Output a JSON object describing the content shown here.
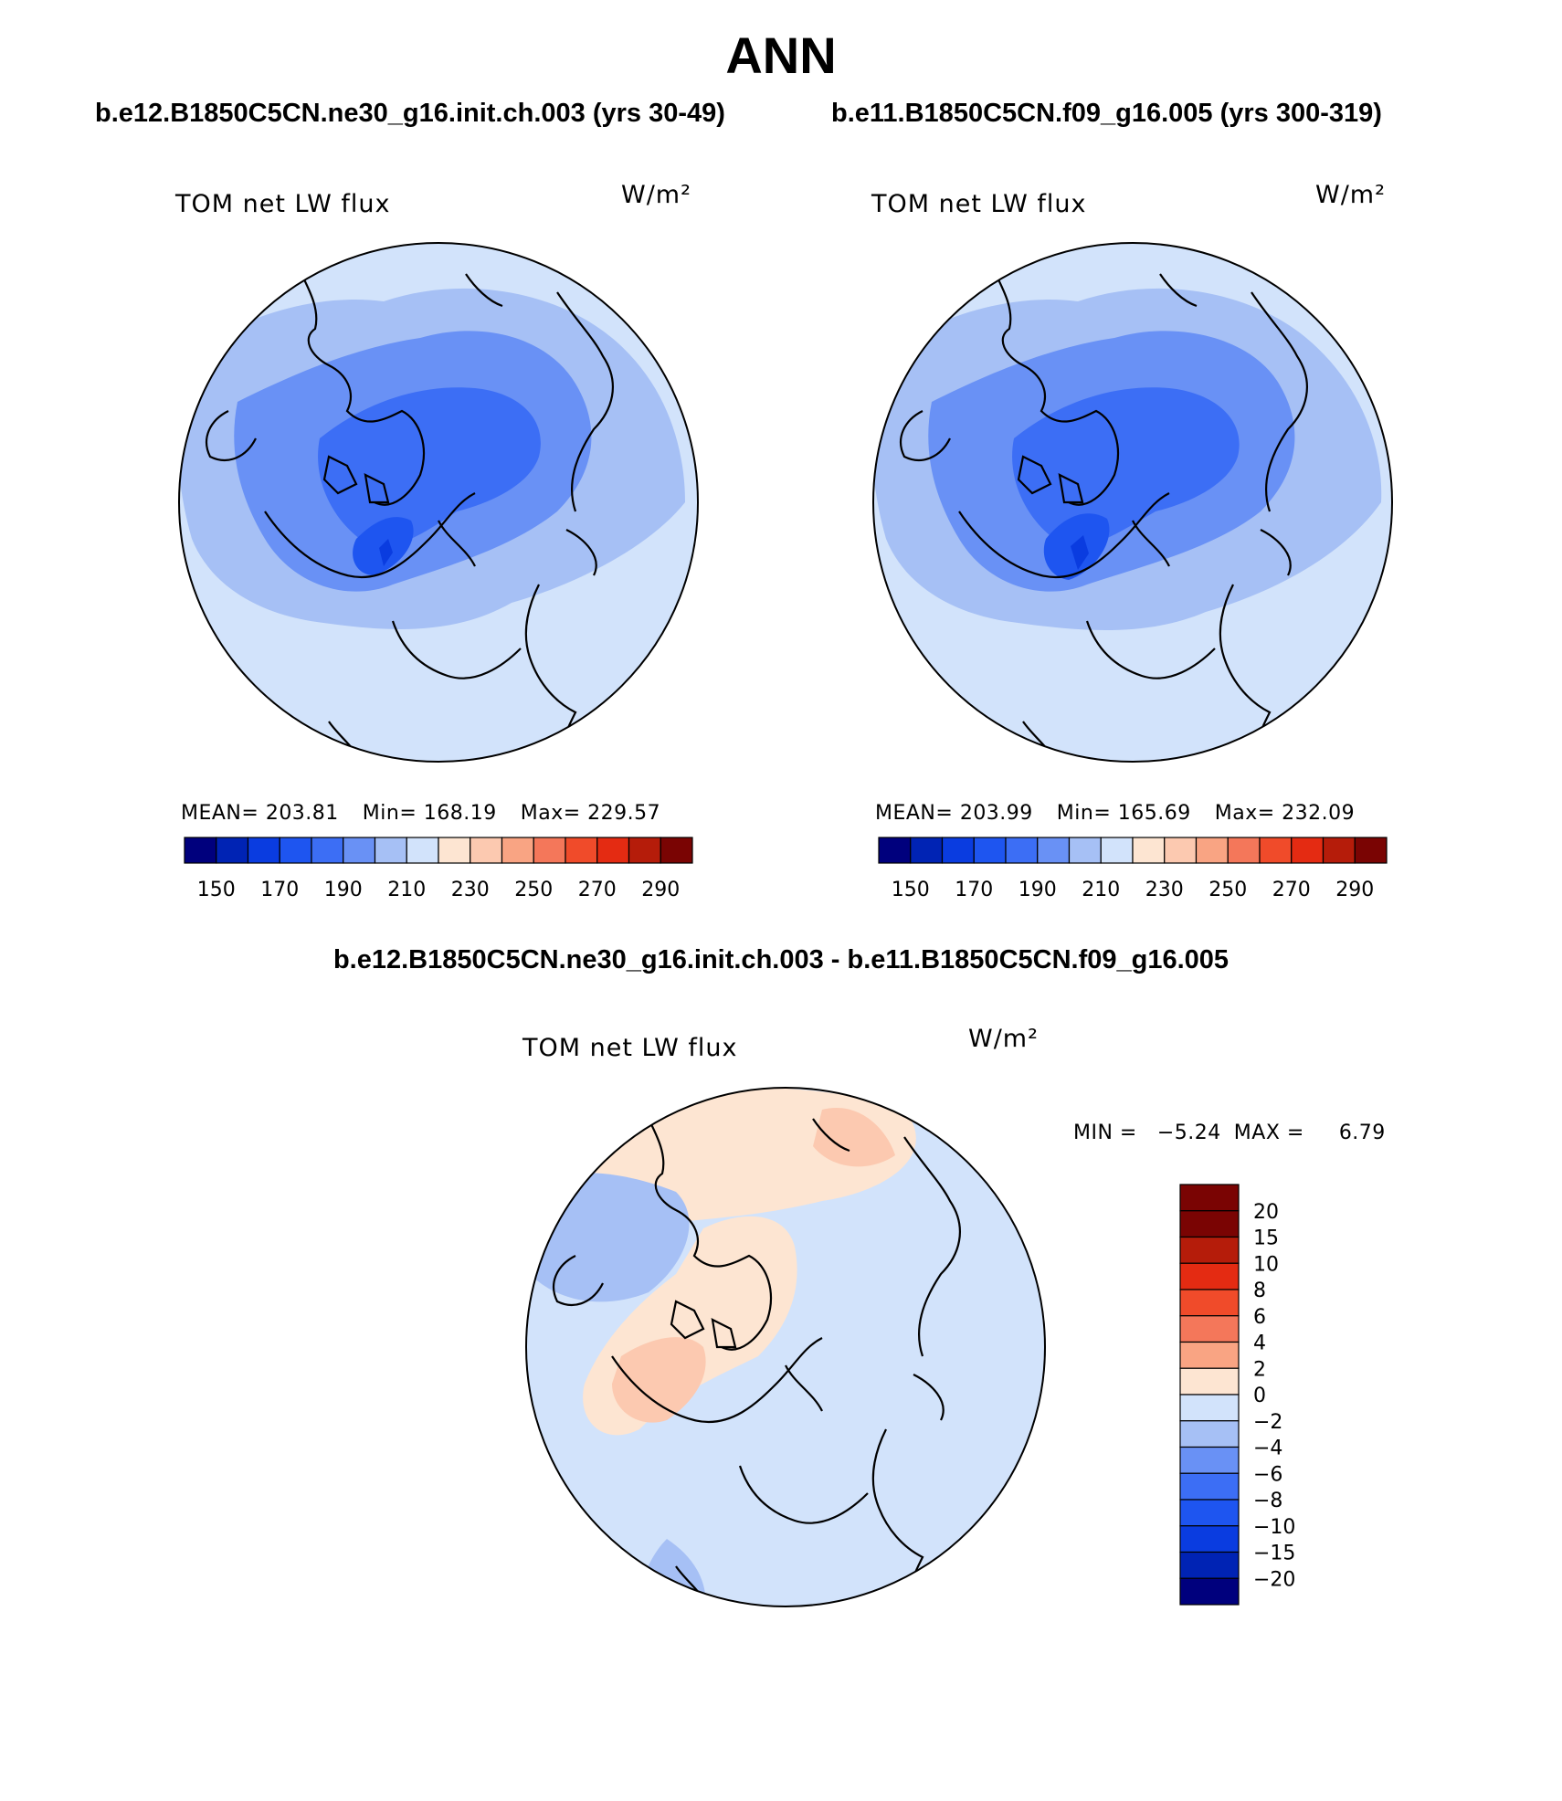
{
  "page_title": "ANN",
  "left_panel": {
    "case": "b.e12.B1850C5CN.ne30_g16.init.ch.003 (yrs 30-49)",
    "variable": "TOM net LW flux",
    "units": "W/m²",
    "mean": "MEAN= 203.81",
    "min": "Min= 168.19",
    "max": "Max= 229.57"
  },
  "right_panel": {
    "case": "b.e11.B1850C5CN.f09_g16.005 (yrs 300-319)",
    "variable": "TOM net LW flux",
    "units": "W/m²",
    "mean": "MEAN= 203.99",
    "min": "Min= 165.69",
    "max": "Max= 232.09"
  },
  "diff_panel": {
    "title": "b.e12.B1850C5CN.ne30_g16.init.ch.003 - b.e11.B1850C5CN.f09_g16.005",
    "variable": "TOM net LW flux",
    "units": "W/m²",
    "min_label": "MIN =",
    "min_value": "−5.24",
    "max_label": "MAX =",
    "max_value": "6.79"
  },
  "colorbars": {
    "abs_colors": [
      "#00007d",
      "#0023b4",
      "#0a3ce0",
      "#1e55f0",
      "#3c6ef5",
      "#6991f5",
      "#96b9f5",
      "#c3d7f8",
      "#e1edfa",
      "#fde4d0",
      "#fcc8ad",
      "#fbaa87",
      "#f8875f",
      "#f5603a",
      "#e63c1e",
      "#c42811",
      "#9b1a0a",
      "#781000"
    ],
    "abs_fixed": [
      "#00007d",
      "#0023b4",
      "#0a3ce0",
      "#1e55f0",
      "#3c6ef5",
      "#6991f5",
      "#a6c0f5",
      "#d2e3fb",
      "#fde5d2",
      "#fcc9b0",
      "#f9a483",
      "#f4775a",
      "#f04b2a",
      "#e42b12",
      "#b51c0a",
      "#7a0403"
    ],
    "abs_ticks": [
      "150",
      "170",
      "190",
      "210",
      "230",
      "250",
      "270",
      "290"
    ],
    "diff_colors": [
      "#7a0403",
      "#b51c0a",
      "#e42b12",
      "#f04b2a",
      "#f4775a",
      "#f9a483",
      "#fde5d2",
      "#d2e3fb",
      "#a6c0f5",
      "#6991f5",
      "#3c6ef5",
      "#1e55f0",
      "#0a3ce0",
      "#0023b4",
      "#00007d"
    ],
    "diff_ticks": [
      "20",
      "15",
      "10",
      "8",
      "6",
      "4",
      "2",
      "0",
      "−2",
      "−4",
      "−6",
      "−8",
      "−10",
      "−15",
      "−20"
    ]
  },
  "map_colors": {
    "bg_light": "#d2e3fb",
    "lev2": "#a6c0f5",
    "lev3": "#6991f5",
    "lev4": "#3c6ef5",
    "lev5": "#1e55f0",
    "peach": "#fde5d2",
    "peach2": "#fcc9b0"
  }
}
